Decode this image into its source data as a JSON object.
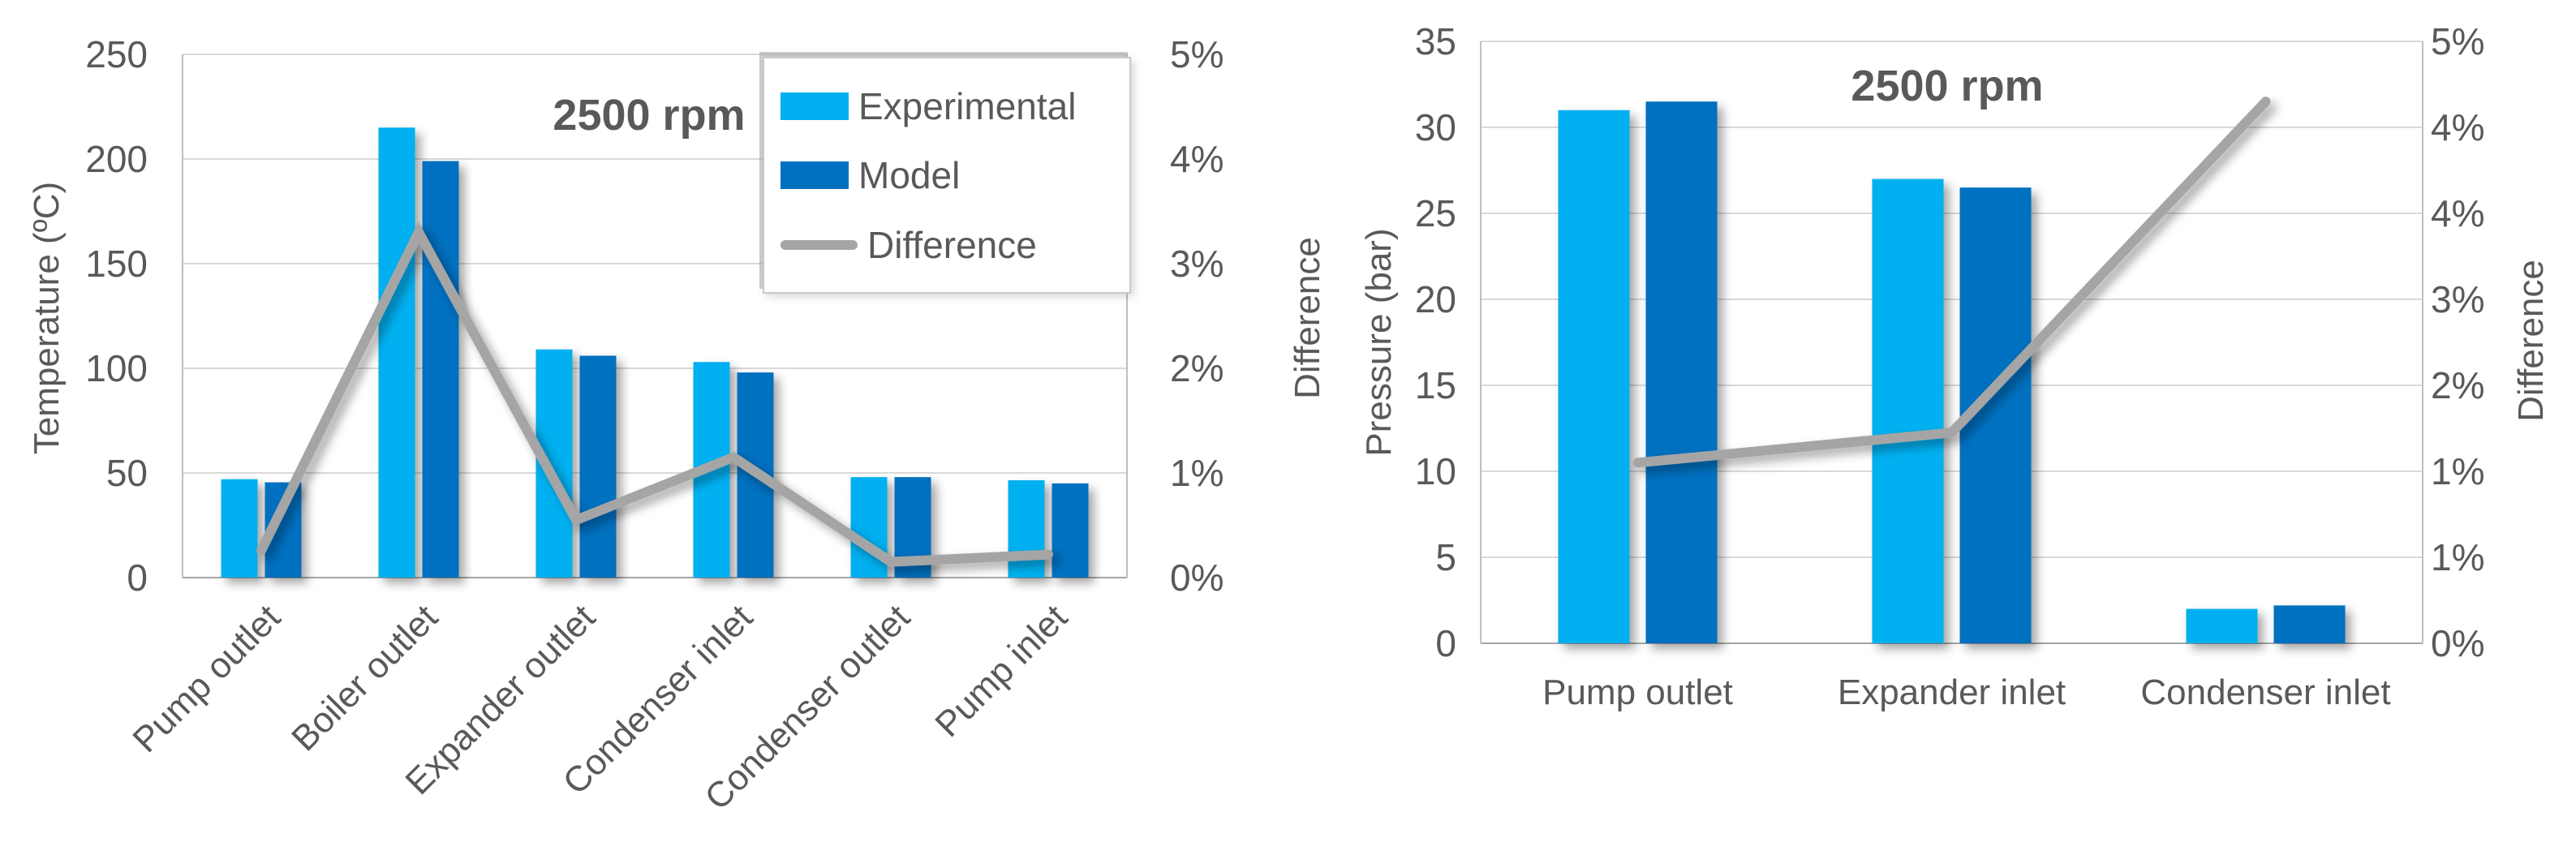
{
  "figure": {
    "background": "#ffffff",
    "text_color": "#595959",
    "gridline_color": "#d9d9d9",
    "axis_line_color": "#bfbfbf",
    "baseline_color": "#a6a6a6"
  },
  "chart_data": [
    {
      "id": "temperature-2500rpm",
      "type": "bar",
      "title": "2500 rpm",
      "ylabel": "Temperature (ºC)",
      "y2label": "Difference",
      "categories": [
        "Pump outlet",
        "Boiler outlet",
        "Expander outlet",
        "Condenser inlet",
        "Condenser outlet",
        "Pump inlet"
      ],
      "series": [
        {
          "name": "Experimental",
          "type": "bar",
          "axis": "primary",
          "color": "#00b0f0",
          "values": [
            47,
            215,
            109,
            103,
            48,
            46.5
          ]
        },
        {
          "name": "Model",
          "type": "bar",
          "axis": "primary",
          "color": "#0070c0",
          "values": [
            45.5,
            199,
            106,
            98,
            48,
            45
          ]
        },
        {
          "name": "Difference",
          "type": "line",
          "axis": "secondary",
          "color": "#a5a5a5",
          "values": [
            0.26,
            3.3,
            0.55,
            1.15,
            0.15,
            0.22
          ]
        }
      ],
      "y": {
        "min": 0,
        "max": 250,
        "step": 50,
        "format": "number"
      },
      "y2": {
        "min": 0,
        "max": 5,
        "step": 1,
        "format": "percent"
      },
      "grid": true,
      "legend_position": "top-right-inside",
      "category_label_rotation": -45
    },
    {
      "id": "pressure-2500rpm",
      "type": "bar",
      "title": "2500 rpm",
      "ylabel": "Pressure (bar)",
      "y2label": "Difference",
      "categories": [
        "Pump outlet",
        "Expander inlet",
        "Condenser inlet"
      ],
      "series": [
        {
          "name": "Experimental",
          "type": "bar",
          "axis": "primary",
          "color": "#00b0f0",
          "values": [
            31,
            27,
            2
          ]
        },
        {
          "name": "Model",
          "type": "bar",
          "axis": "primary",
          "color": "#0070c0",
          "values": [
            31.5,
            26.5,
            2.2
          ]
        },
        {
          "name": "Difference",
          "type": "line",
          "axis": "secondary",
          "color": "#a5a5a5",
          "values": [
            1.5,
            1.75,
            4.5
          ]
        }
      ],
      "y": {
        "min": 0,
        "max": 35,
        "step": 5,
        "format": "number"
      },
      "y2": {
        "min": 0,
        "max": 5,
        "step": 1,
        "format": "percent"
      },
      "grid": true,
      "legend_position": "none",
      "category_label_rotation": 0
    }
  ]
}
